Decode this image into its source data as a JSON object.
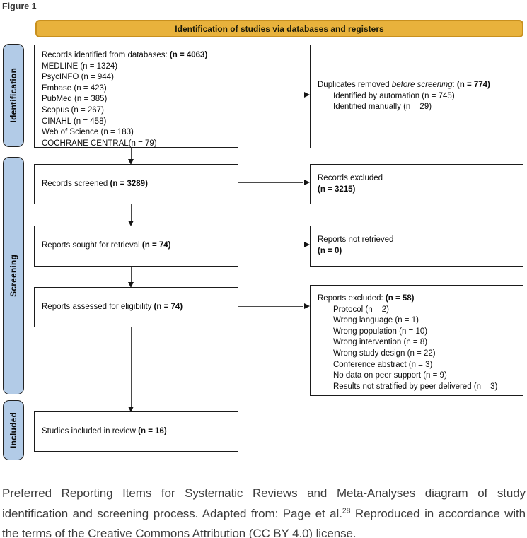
{
  "figure_label": "Figure 1",
  "banner": {
    "title": "Identification of studies via databases and registers"
  },
  "sidebar": {
    "labels": [
      "Identification",
      "Screening",
      "Included"
    ]
  },
  "boxes": {
    "records_identified": {
      "title": "Records identified from databases: ",
      "n": "(n = 4063)",
      "items": [
        "MEDLINE (n = 1324)",
        "PsycINFO (n = 944)",
        "Embase (n = 423)",
        "PubMed (n = 385)",
        "Scopus (n = 267)",
        "CINAHL (n = 458)",
        "Web of Science (n = 183)",
        "COCHRANE CENTRAL(n = 79)"
      ]
    },
    "duplicates_removed": {
      "prefix": "Duplicates removed ",
      "italic": "before screening",
      "sep": ": ",
      "n": "(n = 774)",
      "items": [
        "Identified by automation (n = 745)",
        "Identified manually (n = 29)"
      ]
    },
    "records_screened": {
      "title": "Records screened ",
      "n": "(n = 3289)"
    },
    "records_excluded": {
      "title": "Records excluded",
      "n": "(n = 3215)"
    },
    "reports_sought": {
      "title": "Reports sought for retrieval ",
      "n": "(n = 74)"
    },
    "reports_not_retrieved": {
      "title": "Reports not retrieved",
      "n": "(n = 0)"
    },
    "reports_assessed": {
      "title": "Reports assessed for eligibility ",
      "n": "(n = 74)"
    },
    "reports_excluded": {
      "title": "Reports excluded: ",
      "n": "(n = 58)",
      "items": [
        "Protocol (n = 2)",
        "Wrong language (n = 1)",
        "Wrong population (n = 10)",
        "Wrong intervention (n = 8)",
        "Wrong study design (n = 22)",
        "Conference abstract (n = 3)",
        "No data on peer support (n = 9)",
        "Results not stratified by peer delivered (n = 3)"
      ]
    },
    "studies_included": {
      "title": "Studies included in review ",
      "n": "(n = 16)"
    }
  },
  "caption": {
    "part1": "Preferred Reporting Items for Systematic Reviews and Meta-Analyses diagram of study identification and screening process. Adapted from: Page et al.",
    "sup": "28",
    "part2": " Reproduced in accordance with the terms of the Creative Commons Attribution (CC BY 4.0) license."
  },
  "colors": {
    "banner_fill": "#E8B23C",
    "banner_border": "#C8901E",
    "sidebar_fill": "#B2CBE7",
    "box_border": "#1B1B1B",
    "arrow": "#4A4A4A",
    "caption_text": "#3D3D3D"
  }
}
